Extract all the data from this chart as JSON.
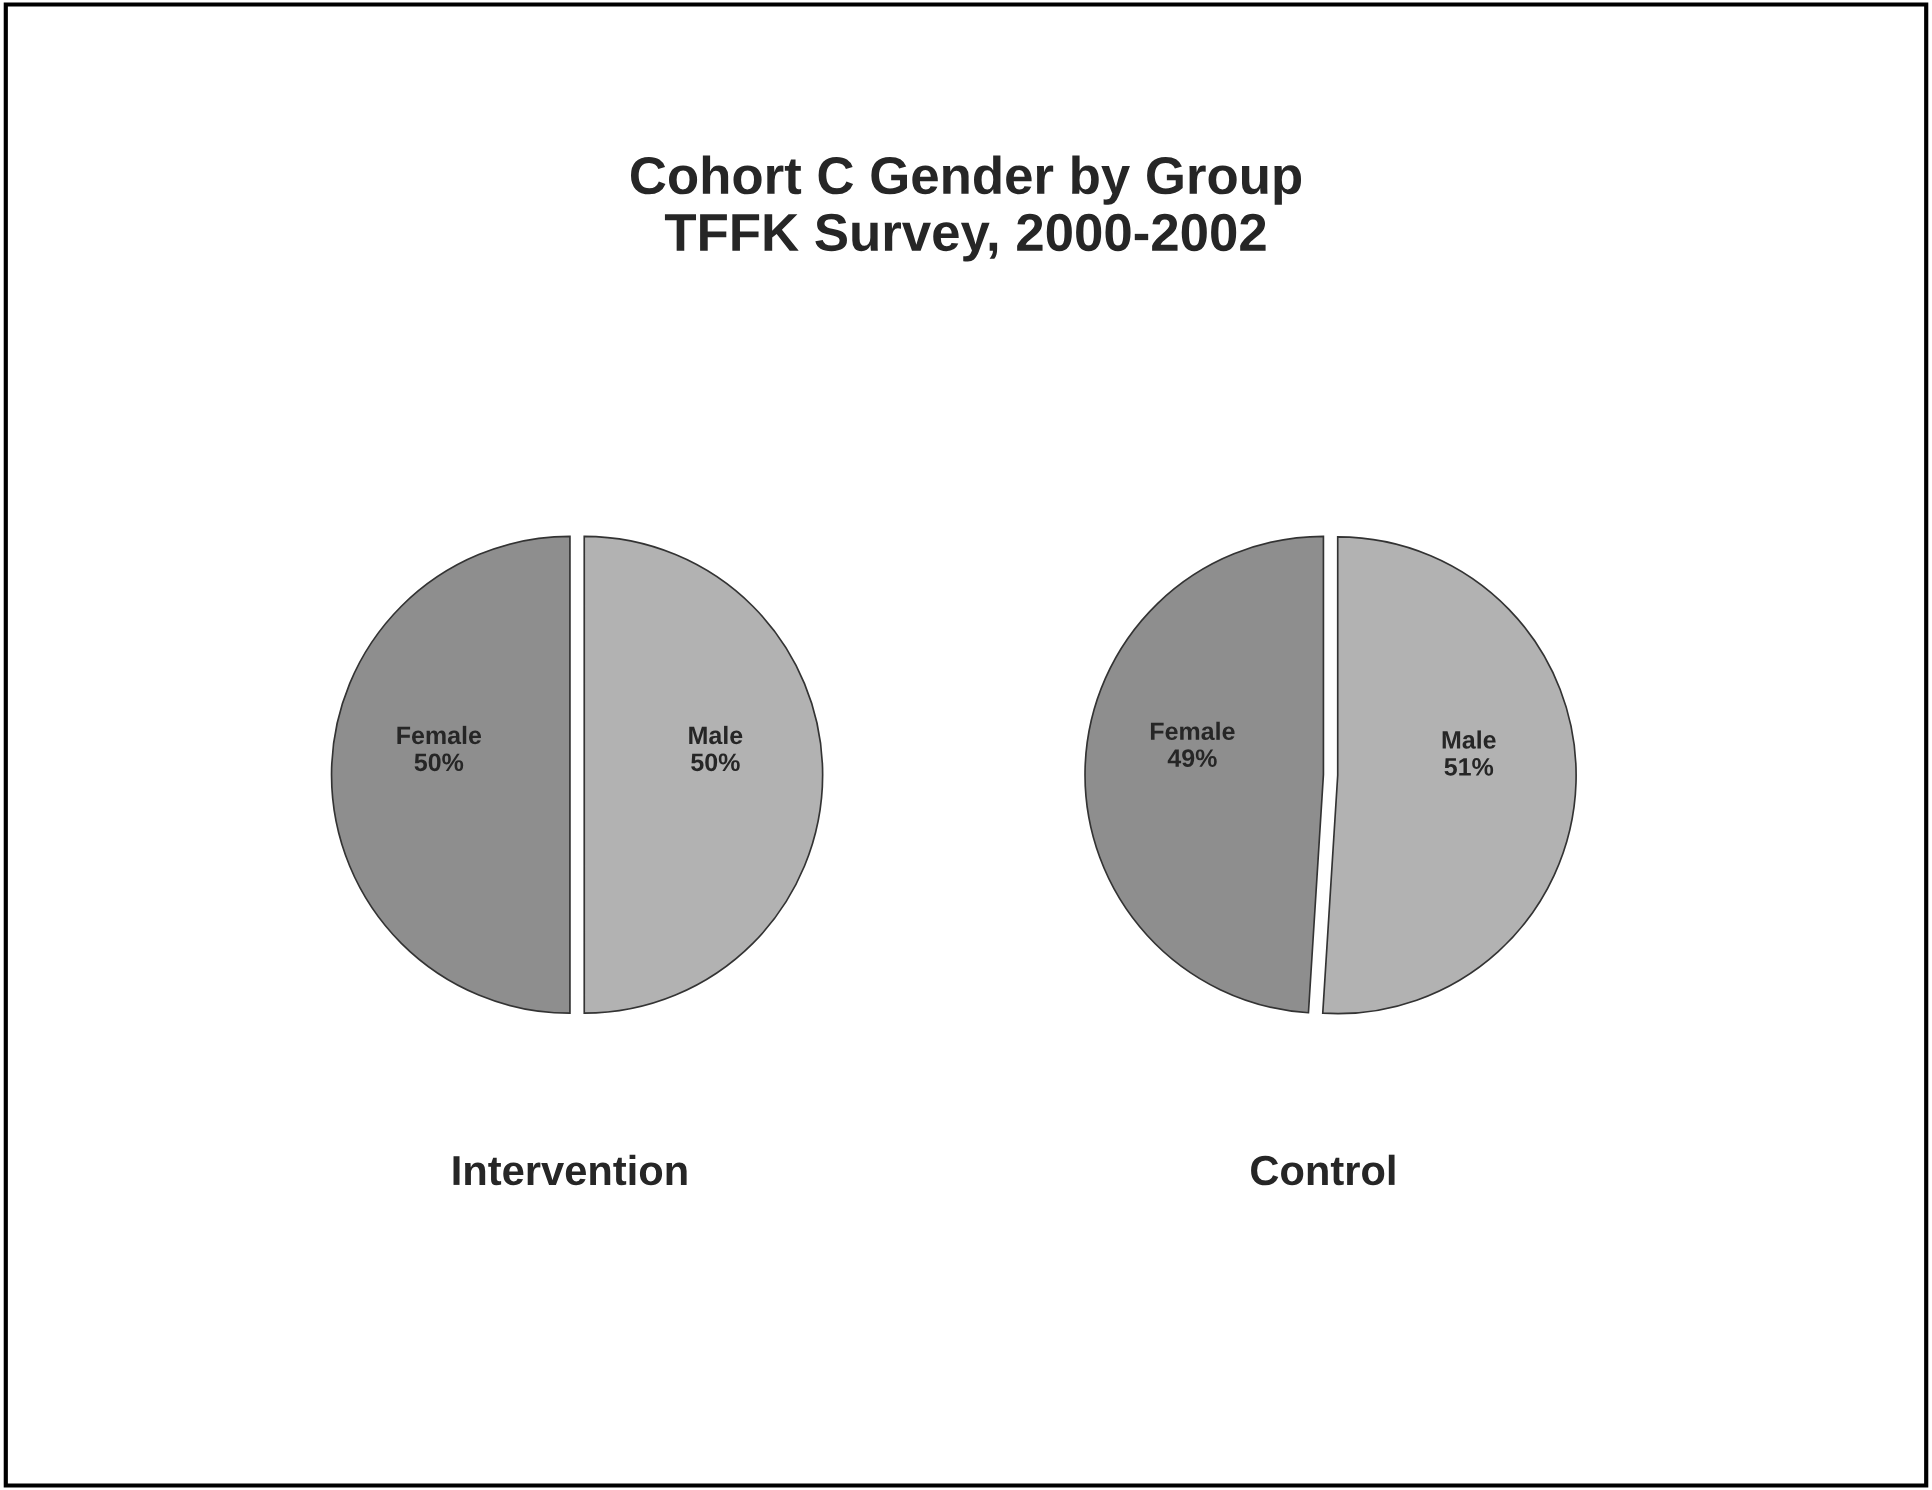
{
  "chart_data": [
    {
      "type": "pie",
      "title": "Cohort C Gender by Group\nTFFK Survey, 2000-2002",
      "xlabel": "Intervention",
      "categories": [
        "Female",
        "Male"
      ],
      "values": [
        50,
        50
      ],
      "colors": [
        "#8e8e8e",
        "#b2b2b2"
      ],
      "value_labels": [
        "50%",
        "50%"
      ]
    },
    {
      "type": "pie",
      "xlabel": "Control",
      "categories": [
        "Female",
        "Male"
      ],
      "values": [
        49,
        51
      ],
      "colors": [
        "#8e8e8e",
        "#b2b2b2"
      ],
      "value_labels": [
        "49%",
        "51%"
      ]
    }
  ]
}
